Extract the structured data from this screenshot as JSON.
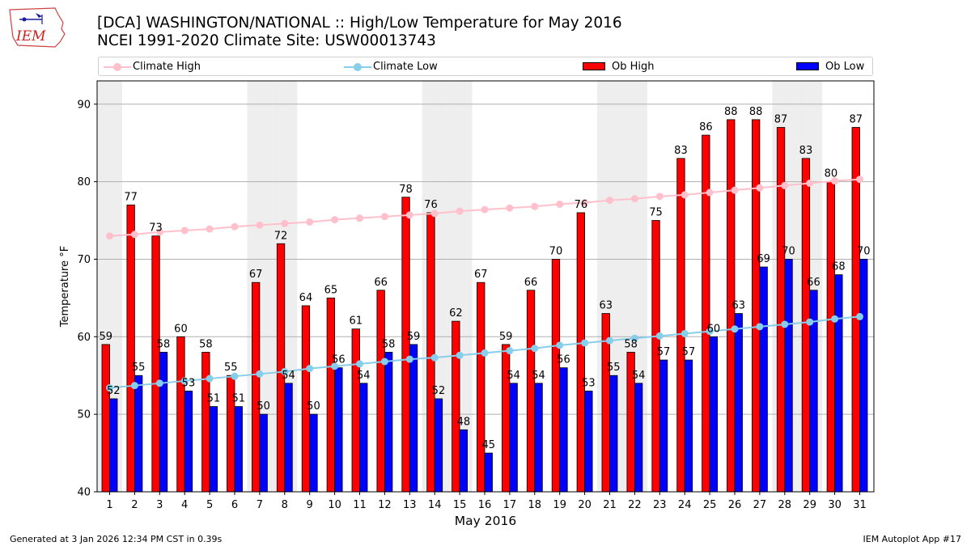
{
  "logo": {
    "text": "IEM",
    "icon": "iowa-state-logo-icon"
  },
  "header": {
    "title_line1": "[DCA] WASHINGTON/NATIONAL :: High/Low Temperature for May 2016",
    "title_line2": "NCEI 1991-2020 Climate Site: USW00013743"
  },
  "legend": {
    "climate_high": "Climate High",
    "climate_low": "Climate Low",
    "ob_high": "Ob High",
    "ob_low": "Ob Low"
  },
  "colors": {
    "ob_high": "#ff0000",
    "ob_low": "#0000ff",
    "climate_high": "#ffc0cb",
    "climate_low": "#87ceeb",
    "weekend_shade": "#eeeeee",
    "grid": "#b0b0b0"
  },
  "footer": {
    "left": "Generated at 3 Jan 2026 12:34 PM CST in 0.39s",
    "right": "IEM Autoplot App #17"
  },
  "chart_data": {
    "type": "bar",
    "xlabel": "May 2016",
    "ylabel": "Temperature °F",
    "ylim": [
      40,
      93
    ],
    "yticks": [
      40,
      50,
      60,
      70,
      80,
      90
    ],
    "grid": true,
    "categories": [
      "1",
      "2",
      "3",
      "4",
      "5",
      "6",
      "7",
      "8",
      "9",
      "10",
      "11",
      "12",
      "13",
      "14",
      "15",
      "16",
      "17",
      "18",
      "19",
      "20",
      "21",
      "22",
      "23",
      "24",
      "25",
      "26",
      "27",
      "28",
      "29",
      "30",
      "31"
    ],
    "weekend_days": [
      1,
      7,
      8,
      14,
      15,
      21,
      22,
      28,
      29
    ],
    "series": [
      {
        "name": "Ob High",
        "type": "bar",
        "values": [
          59,
          77,
          73,
          60,
          58,
          55,
          67,
          72,
          64,
          65,
          61,
          66,
          78,
          76,
          62,
          67,
          59,
          66,
          70,
          76,
          63,
          58,
          75,
          83,
          86,
          88,
          88,
          87,
          83,
          80,
          87
        ]
      },
      {
        "name": "Ob Low",
        "type": "bar",
        "values": [
          52,
          55,
          58,
          53,
          51,
          51,
          50,
          54,
          50,
          56,
          54,
          58,
          59,
          52,
          48,
          45,
          54,
          54,
          56,
          53,
          55,
          54,
          57,
          57,
          60,
          63,
          69,
          70,
          66,
          68,
          70
        ]
      },
      {
        "name": "Climate High",
        "type": "line",
        "values": [
          73.0,
          73.2,
          73.5,
          73.7,
          73.9,
          74.2,
          74.4,
          74.6,
          74.8,
          75.1,
          75.3,
          75.5,
          75.7,
          75.9,
          76.2,
          76.4,
          76.6,
          76.8,
          77.1,
          77.3,
          77.6,
          77.8,
          78.1,
          78.3,
          78.6,
          78.9,
          79.2,
          79.5,
          79.8,
          80.1,
          80.3
        ]
      },
      {
        "name": "Climate Low",
        "type": "line",
        "values": [
          53.4,
          53.7,
          54.0,
          54.3,
          54.6,
          54.9,
          55.2,
          55.5,
          55.9,
          56.2,
          56.5,
          56.8,
          57.1,
          57.3,
          57.6,
          57.9,
          58.2,
          58.5,
          58.9,
          59.2,
          59.5,
          59.8,
          60.1,
          60.4,
          60.7,
          61.0,
          61.3,
          61.6,
          61.9,
          62.3,
          62.6
        ]
      }
    ]
  }
}
